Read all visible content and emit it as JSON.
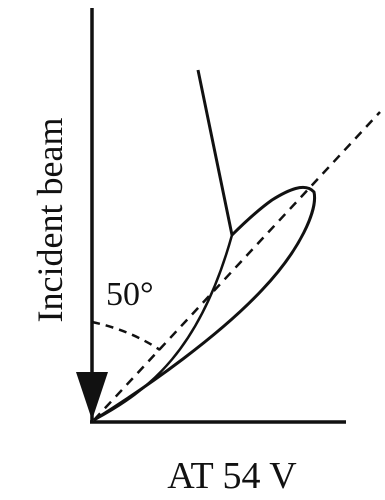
{
  "diagram": {
    "incident_label": "Incident beam",
    "angle_label": "50°",
    "voltage_label": "AT 54 V",
    "colors": {
      "stroke": "#111111",
      "background": "#ffffff"
    }
  }
}
